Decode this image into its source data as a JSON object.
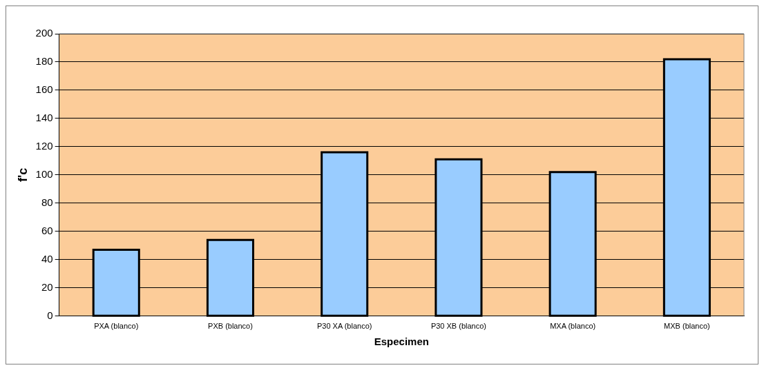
{
  "chart_data": {
    "type": "bar",
    "xlabel": "Especimen",
    "ylabel": "f'c",
    "categories": [
      "PXA (blanco)",
      "PXB (blanco)",
      "P30 XA (blanco)",
      "P30 XB (blanco)",
      "MXA (blanco)",
      "MXB (blanco)"
    ],
    "values": [
      47,
      54,
      116,
      111,
      102,
      182
    ],
    "color": "#99ccff",
    "ylim": [
      0,
      200
    ],
    "yticks": [
      0,
      20,
      40,
      60,
      80,
      100,
      120,
      140,
      160,
      180,
      200
    ],
    "grid": "y",
    "legend": false
  }
}
